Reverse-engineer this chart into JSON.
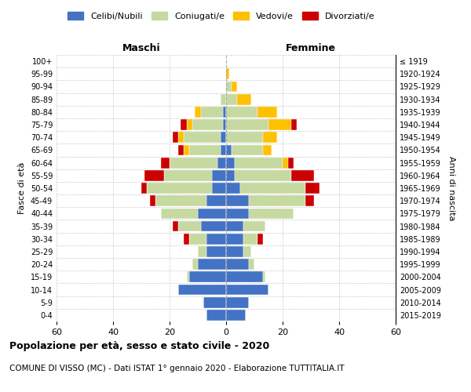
{
  "age_groups": [
    "100+",
    "95-99",
    "90-94",
    "85-89",
    "80-84",
    "75-79",
    "70-74",
    "65-69",
    "60-64",
    "55-59",
    "50-54",
    "45-49",
    "40-44",
    "35-39",
    "30-34",
    "25-29",
    "20-24",
    "15-19",
    "10-14",
    "5-9",
    "0-4"
  ],
  "birth_years": [
    "≤ 1919",
    "1920-1924",
    "1925-1929",
    "1930-1934",
    "1935-1939",
    "1940-1944",
    "1945-1949",
    "1950-1954",
    "1955-1959",
    "1960-1964",
    "1965-1969",
    "1970-1974",
    "1975-1979",
    "1980-1984",
    "1985-1989",
    "1990-1994",
    "1995-1999",
    "2000-2004",
    "2005-2009",
    "2010-2014",
    "2015-2019"
  ],
  "male": {
    "celibi": [
      0,
      0,
      0,
      0,
      1,
      1,
      2,
      2,
      3,
      5,
      5,
      7,
      10,
      9,
      7,
      7,
      10,
      13,
      17,
      8,
      7
    ],
    "coniugati": [
      0,
      0,
      0,
      2,
      8,
      11,
      13,
      11,
      17,
      17,
      23,
      18,
      13,
      8,
      6,
      3,
      2,
      1,
      0,
      0,
      0
    ],
    "vedovi": [
      0,
      0,
      0,
      0,
      2,
      2,
      2,
      2,
      0,
      0,
      0,
      0,
      0,
      0,
      0,
      0,
      0,
      0,
      0,
      0,
      0
    ],
    "divorziati": [
      0,
      0,
      0,
      0,
      0,
      2,
      2,
      2,
      3,
      7,
      2,
      2,
      0,
      2,
      2,
      0,
      0,
      0,
      0,
      0,
      0
    ]
  },
  "female": {
    "nubili": [
      0,
      0,
      0,
      0,
      0,
      0,
      0,
      2,
      3,
      3,
      5,
      8,
      8,
      6,
      6,
      6,
      8,
      13,
      15,
      8,
      7
    ],
    "coniugate": [
      0,
      0,
      2,
      4,
      11,
      15,
      13,
      11,
      17,
      20,
      23,
      20,
      16,
      8,
      5,
      3,
      2,
      1,
      0,
      0,
      0
    ],
    "vedove": [
      0,
      1,
      2,
      5,
      7,
      8,
      5,
      3,
      2,
      0,
      0,
      0,
      0,
      0,
      0,
      0,
      0,
      0,
      0,
      0,
      0
    ],
    "divorziate": [
      0,
      0,
      0,
      0,
      0,
      2,
      0,
      0,
      2,
      8,
      5,
      3,
      0,
      0,
      2,
      0,
      0,
      0,
      0,
      0,
      0
    ]
  },
  "colors": {
    "celibi": "#4472C4",
    "coniugati": "#C5D9A0",
    "vedovi": "#FFC000",
    "divorziati": "#CC0000"
  },
  "xlim": 60,
  "title": "Popolazione per età, sesso e stato civile - 2020",
  "subtitle": "COMUNE DI VISSO (MC) - Dati ISTAT 1° gennaio 2020 - Elaborazione TUTTITALIA.IT",
  "ylabel_left": "Fasce di età",
  "ylabel_right": "Anni di nascita",
  "xlabel_left": "Maschi",
  "xlabel_right": "Femmine",
  "bg_color": "#ffffff",
  "bar_linewidth": 0.3,
  "legend_labels": [
    "Celibi/Nubili",
    "Coniugati/e",
    "Vedovi/e",
    "Divorziati/e"
  ]
}
